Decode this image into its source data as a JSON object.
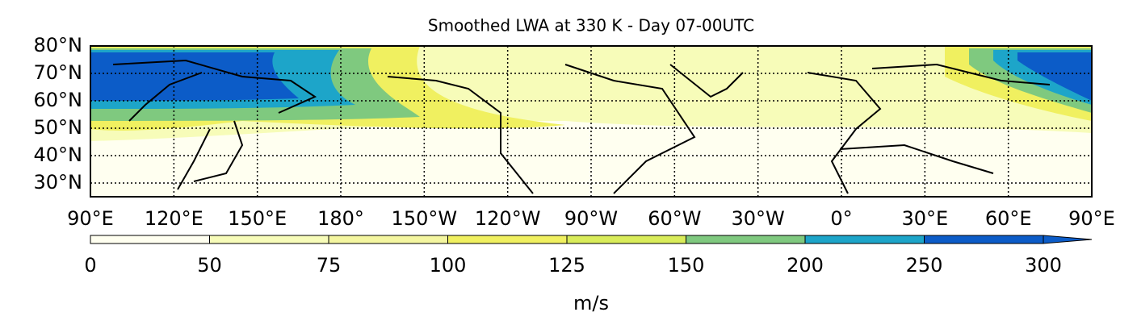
{
  "title": "Smoothed LWA at 330 K - Day 07-00UTC",
  "lat_labels": [
    "80°N",
    "70°N",
    "60°N",
    "50°N",
    "40°N",
    "30°N"
  ],
  "lon_labels": [
    "90°E",
    "120°E",
    "150°E",
    "180°",
    "150°W",
    "120°W",
    "90°W",
    "60°W",
    "30°W",
    "0°",
    "30°E",
    "60°E",
    "90°E"
  ],
  "colorbar": {
    "levels": [
      0,
      50,
      75,
      100,
      125,
      150,
      200,
      250,
      300
    ],
    "colors": [
      "#fffff0",
      "#f7fcb9",
      "#f4f6a0",
      "#f0f060",
      "#d9ec5a",
      "#7fc97f",
      "#1da5c9",
      "#0c5cc8"
    ],
    "extend": "max",
    "label": "m/s"
  }
}
